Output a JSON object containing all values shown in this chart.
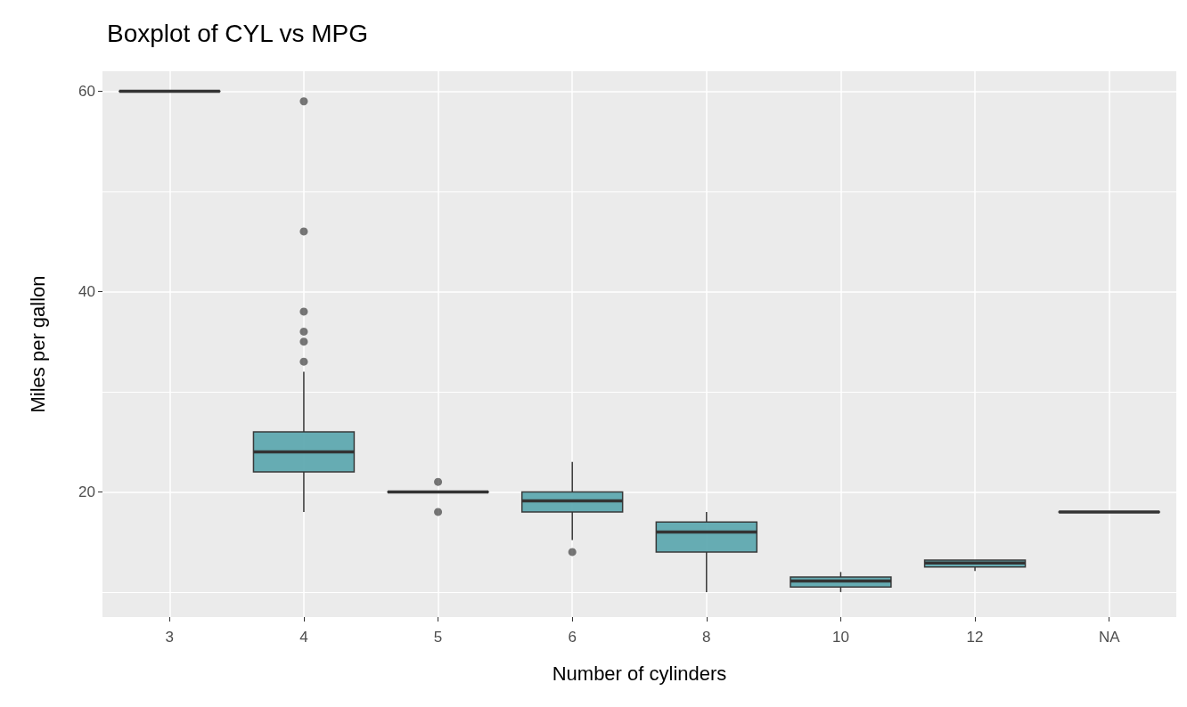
{
  "chart_data": {
    "type": "box",
    "title": "Boxplot of CYL vs MPG",
    "xlabel": "Number of cylinders",
    "ylabel": "Miles per gallon",
    "categories": [
      "3",
      "4",
      "5",
      "6",
      "8",
      "10",
      "12",
      "NA"
    ],
    "series": [
      {
        "color": "#5fa9b0",
        "boxes": [
          {
            "low": 60,
            "q1": 60,
            "median": 60,
            "q3": 60,
            "high": 60
          },
          {
            "low": 18,
            "q1": 22,
            "median": 24,
            "q3": 26,
            "high": 32,
            "outliers": [
              59,
              46,
              38,
              36,
              35,
              33
            ]
          },
          {
            "low": 20,
            "q1": 20,
            "median": 20,
            "q3": 20,
            "high": 20,
            "outliers": [
              21,
              18
            ]
          },
          {
            "low": 15.2,
            "q1": 18,
            "median": 19.1,
            "q3": 20,
            "high": 23,
            "outliers": [
              14
            ]
          },
          {
            "low": 10,
            "q1": 14,
            "median": 16,
            "q3": 17,
            "high": 18
          },
          {
            "low": 10,
            "q1": 10.5,
            "median": 11.1,
            "q3": 11.5,
            "high": 12
          },
          {
            "low": 12.1,
            "q1": 12.5,
            "median": 12.9,
            "q3": 13.2,
            "high": 13.2
          },
          {
            "low": 18,
            "q1": 18,
            "median": 18,
            "q3": 18,
            "high": 18
          }
        ]
      }
    ],
    "ylim": [
      7.5,
      62
    ],
    "yticks": [
      20,
      40,
      60
    ],
    "grid": true
  }
}
